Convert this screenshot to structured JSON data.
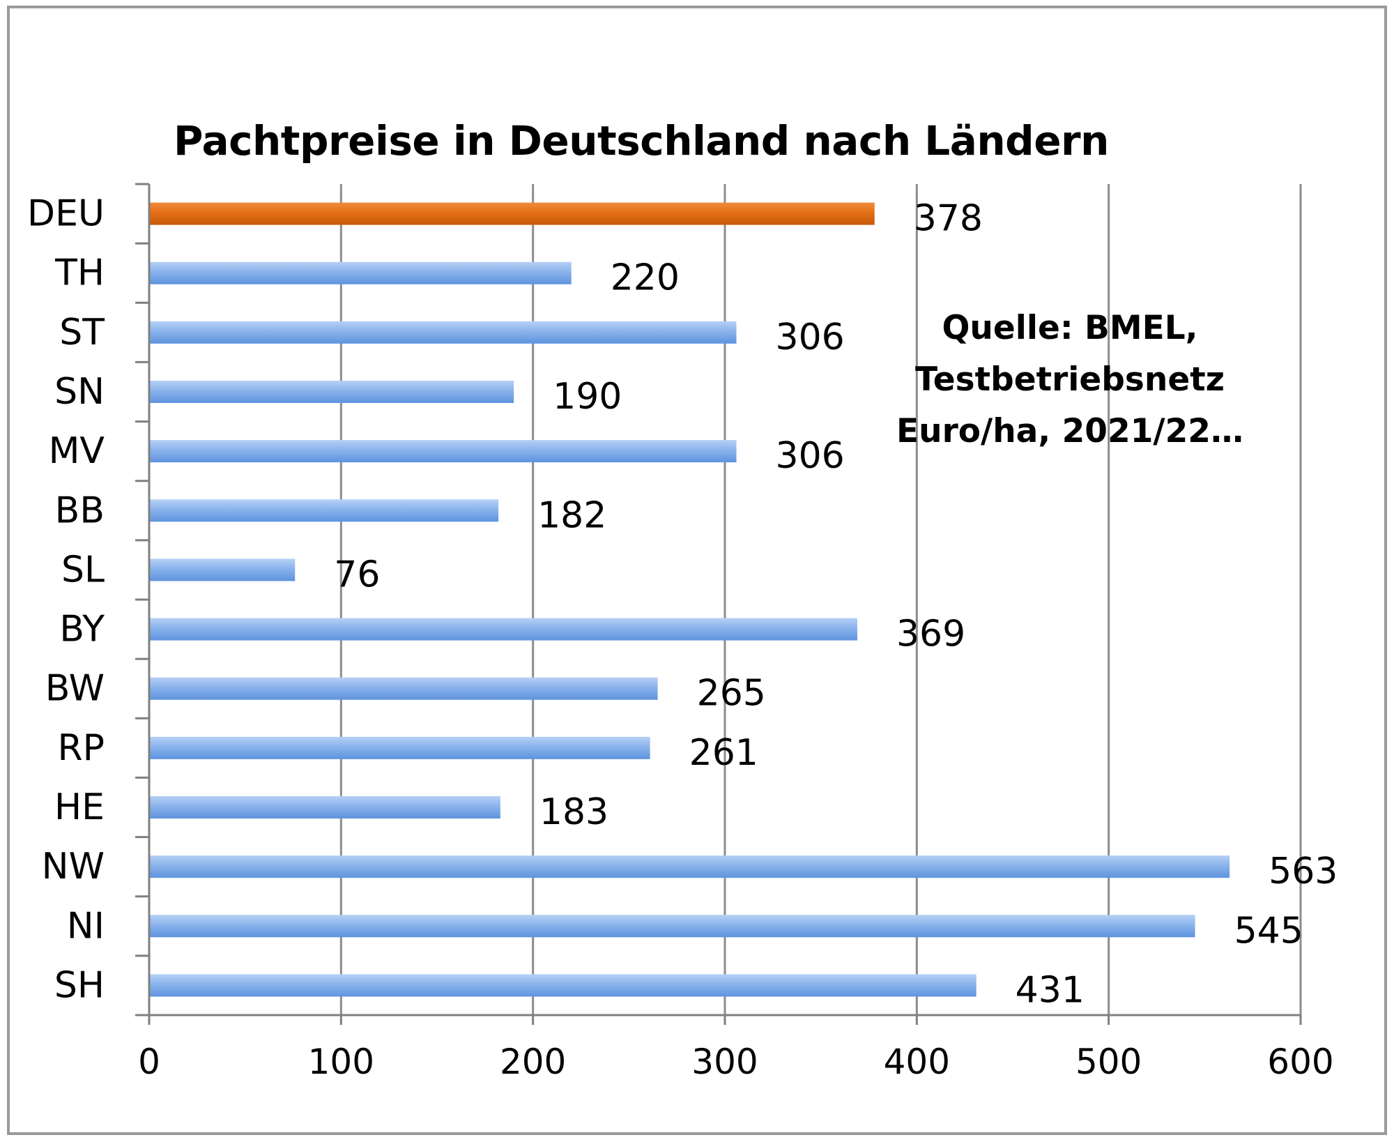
{
  "chart_data": {
    "type": "bar",
    "orientation": "horizontal",
    "title": "Pachtpreise in Deutschland nach Ländern",
    "annotation": [
      "Quelle: BMEL,",
      "Testbetriebsnetz",
      "Euro/ha, 2021/22…"
    ],
    "categories": [
      "DEU",
      "TH",
      "ST",
      "SN",
      "MV",
      "BB",
      "SL",
      "BY",
      "BW",
      "RP",
      "HE",
      "NW",
      "NI",
      "SH"
    ],
    "values": [
      378,
      220,
      306,
      190,
      306,
      182,
      76,
      369,
      265,
      261,
      183,
      563,
      545,
      431
    ],
    "data_labels": [
      "378",
      "220",
      "306",
      "190",
      "306",
      "182",
      "76",
      "369",
      "265",
      "261",
      "183",
      "563",
      "545",
      "431"
    ],
    "highlight_category": "DEU",
    "xlim": [
      0,
      600
    ],
    "x_ticks": [
      0,
      100,
      200,
      300,
      400,
      500,
      600
    ],
    "x_tick_labels": [
      "0",
      "100",
      "200",
      "300",
      "400",
      "500",
      "600"
    ],
    "xlabel": "",
    "ylabel": "",
    "grid": "vertical major gridlines",
    "legend": "none",
    "colors": {
      "bar": "#6f9fe2",
      "bar_light": "#a9c8f2",
      "highlight": "#e36c14",
      "grid": "#8c8c8c",
      "axis": "#7f7f7f"
    }
  }
}
